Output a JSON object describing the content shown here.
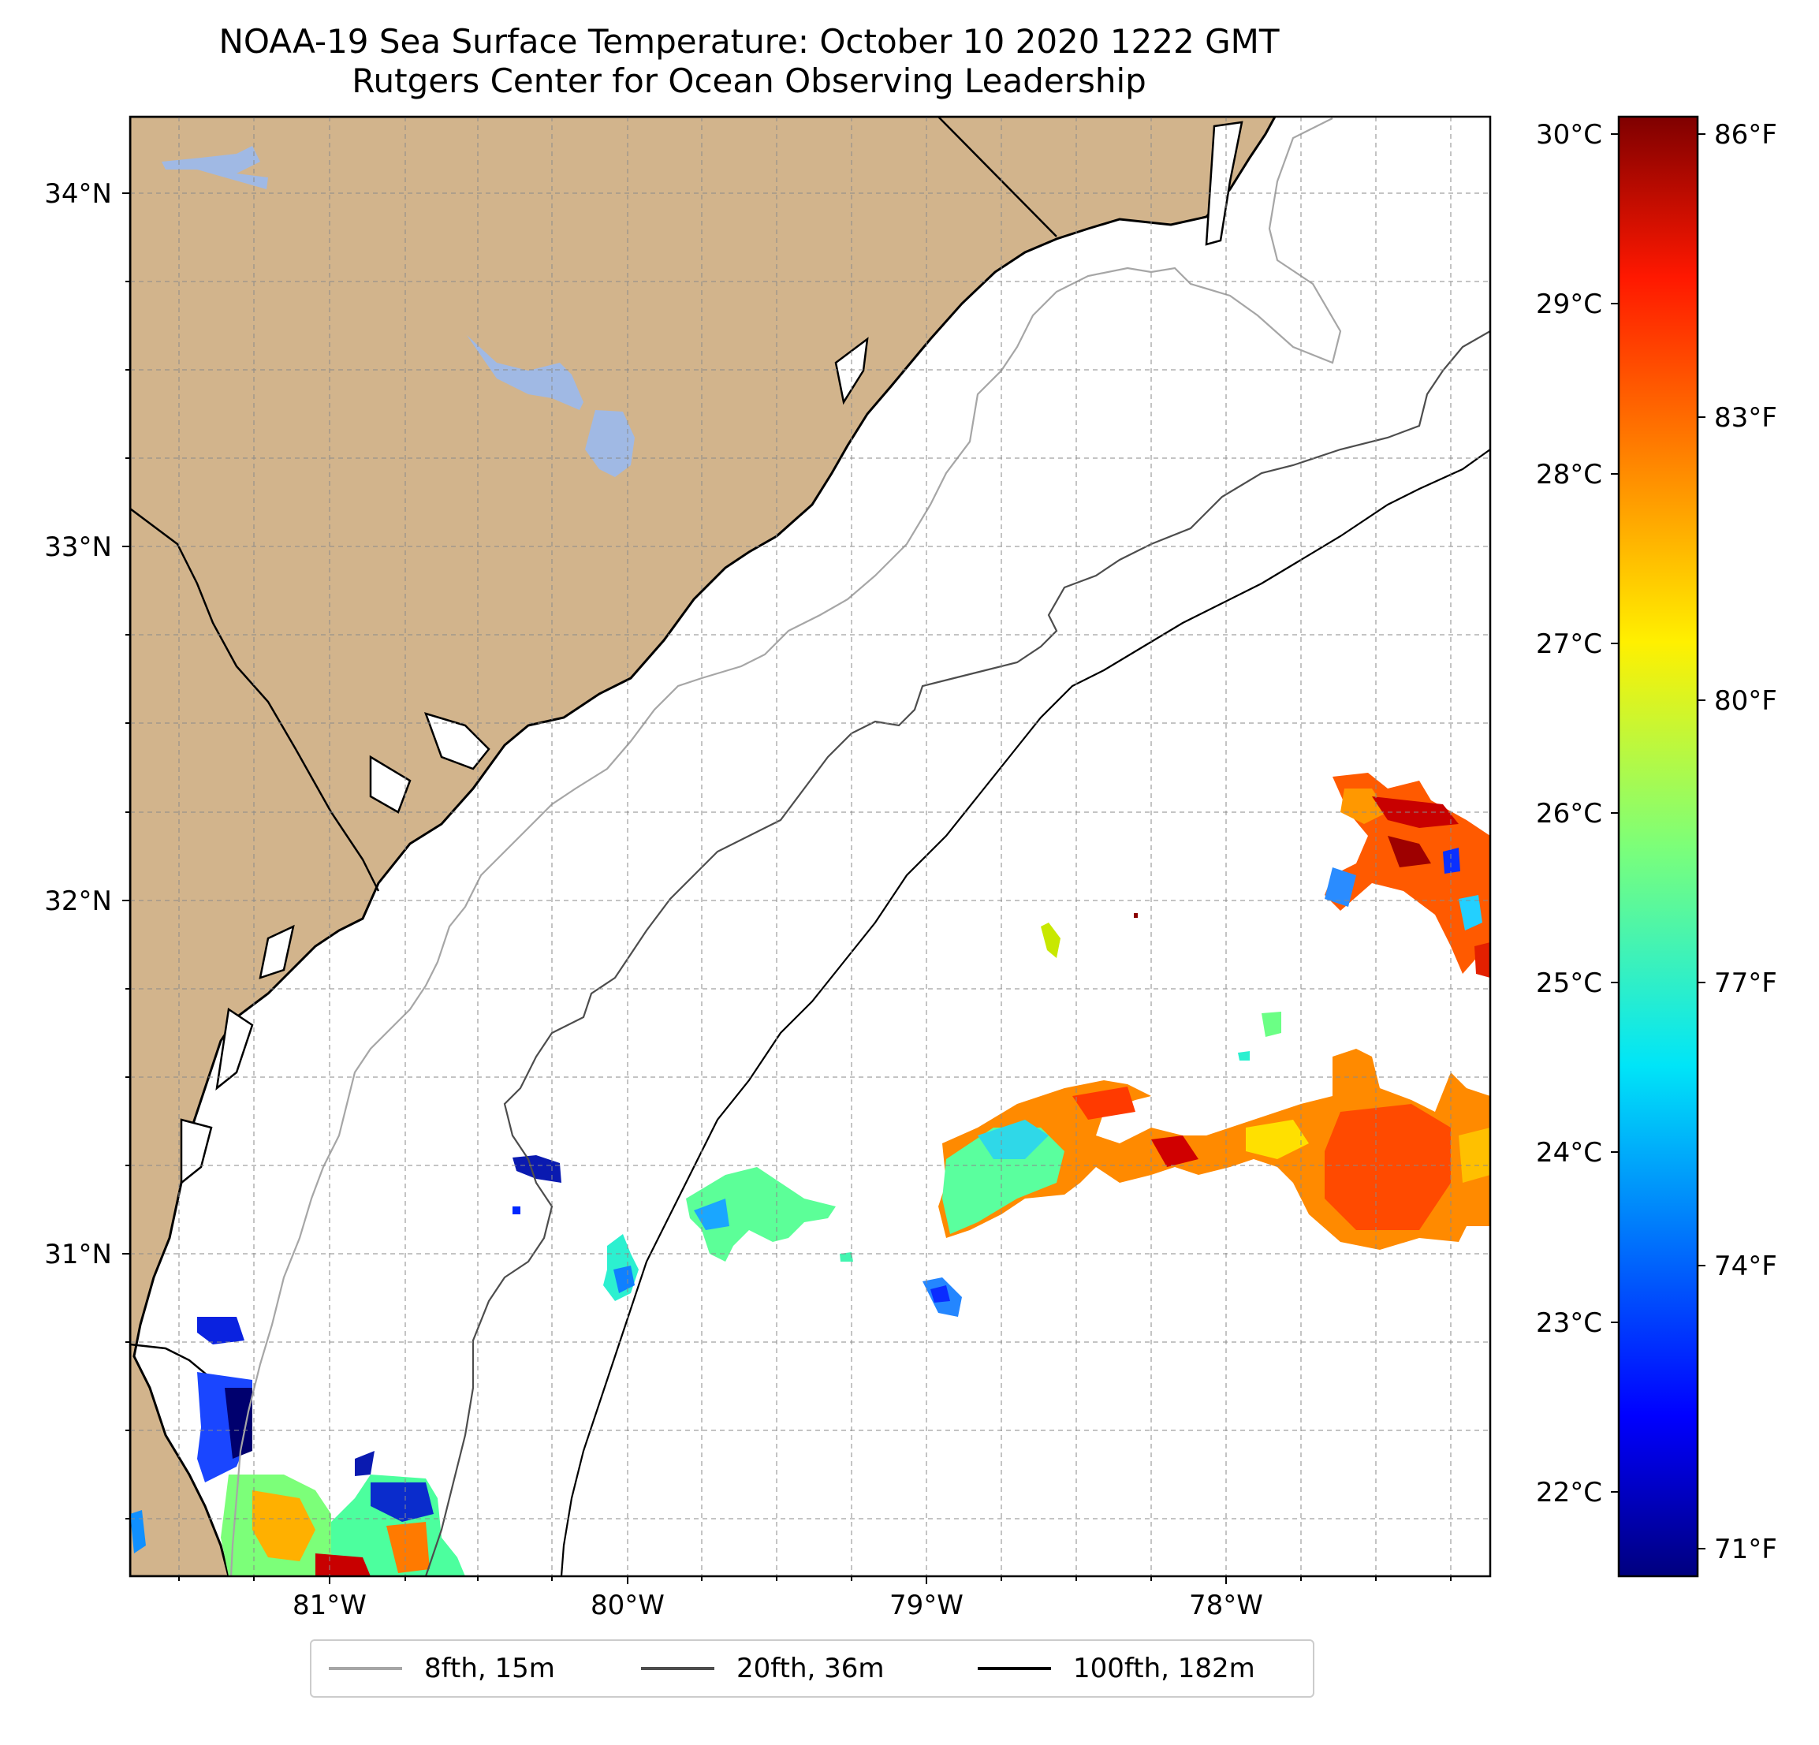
{
  "title": {
    "line1": "NOAA-19 Sea Surface Temperature: October 10 2020 1222 GMT",
    "line2": "Rutgers Center for Ocean Observing Leadership"
  },
  "map": {
    "lat_labels": [
      "34°N",
      "33°N",
      "32°N",
      "31°N"
    ],
    "lon_labels": [
      "81°W",
      "80°W",
      "79°W",
      "78°W"
    ],
    "extent": {
      "lon_min": -81.67,
      "lon_max": -77.13,
      "lat_min": 30.26,
      "lat_max": 34.22
    },
    "land_color": "#d2b48c",
    "water_body_color": "#a0b9e4",
    "ocean_color": "#ffffff",
    "gridlines": true
  },
  "colorbar": {
    "celsius_labels": [
      "30°C",
      "29°C",
      "28°C",
      "27°C",
      "26°C",
      "25°C",
      "24°C",
      "23°C",
      "22°C"
    ],
    "fahrenheit_labels": [
      "86°F",
      "83°F",
      "80°F",
      "77°F",
      "74°F",
      "71°F"
    ],
    "colormap": "jet",
    "range_c": [
      21.6,
      30.1
    ]
  },
  "legend": {
    "items": [
      {
        "label": "8fth, 15m",
        "color": "#a6a6a6"
      },
      {
        "label": "20fth, 36m",
        "color": "#4d4d4d"
      },
      {
        "label": "100fth, 182m",
        "color": "#000000"
      }
    ]
  }
}
